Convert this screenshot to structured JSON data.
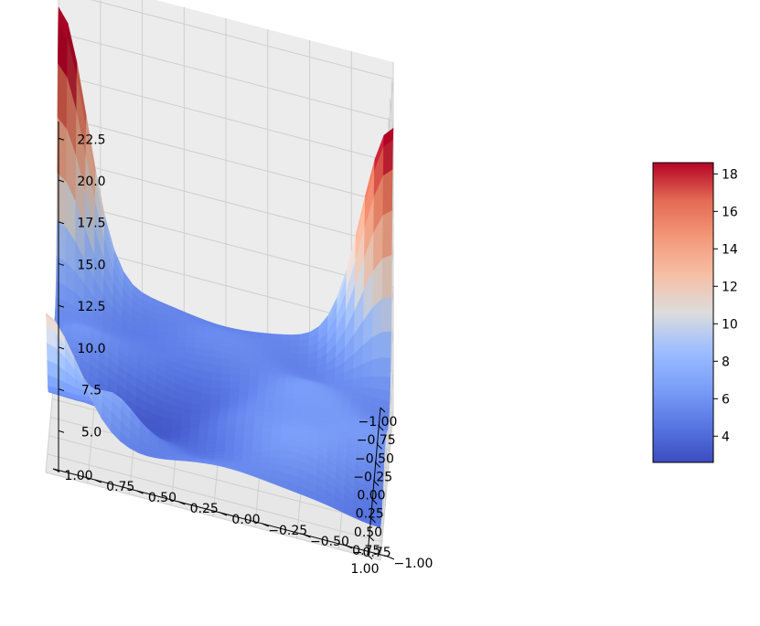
{
  "chart_data": {
    "type": "surface",
    "title": "",
    "xlabel": "",
    "ylabel": "",
    "zlabel": "",
    "xlim": [
      -1.0,
      1.0
    ],
    "ylim": [
      -1.0,
      1.0
    ],
    "zlim": [
      2.5,
      23.5
    ],
    "x_ticks": [
      "−1.00",
      "−0.75",
      "−0.50",
      "−0.25",
      "0.00",
      "0.25",
      "0.50",
      "0.75",
      "1.00"
    ],
    "y_ticks": [
      "−1.00",
      "−0.75",
      "−0.50",
      "−0.25",
      "0.00",
      "0.25",
      "0.50",
      "0.75",
      "1.00"
    ],
    "z_ticks": [
      "5.0",
      "7.5",
      "10.0",
      "12.5",
      "15.0",
      "17.5",
      "20.0",
      "22.5"
    ],
    "grid": true,
    "colormap": "coolwarm",
    "colorbar": {
      "min": 2.6,
      "max": 18.6,
      "ticks": [
        "4",
        "6",
        "8",
        "10",
        "12",
        "14",
        "16",
        "18"
      ]
    },
    "surface_corners": [
      {
        "x": -1.0,
        "y": -1.0,
        "z": 19.5
      },
      {
        "x": -1.0,
        "y": 1.0,
        "z": 21.5
      },
      {
        "x": 1.0,
        "y": 1.0,
        "z": 11.0
      },
      {
        "x": 1.0,
        "y": -1.0,
        "z": 3.8
      }
    ],
    "surface_min": 2.6,
    "colors": {
      "pane_back": "#ececec",
      "pane_side": "#f4f4f4",
      "pane_floor": "#e7e7e7",
      "grid": "#cfcfcf",
      "cool": "#3b4cc0",
      "warm": "#b40426"
    }
  }
}
